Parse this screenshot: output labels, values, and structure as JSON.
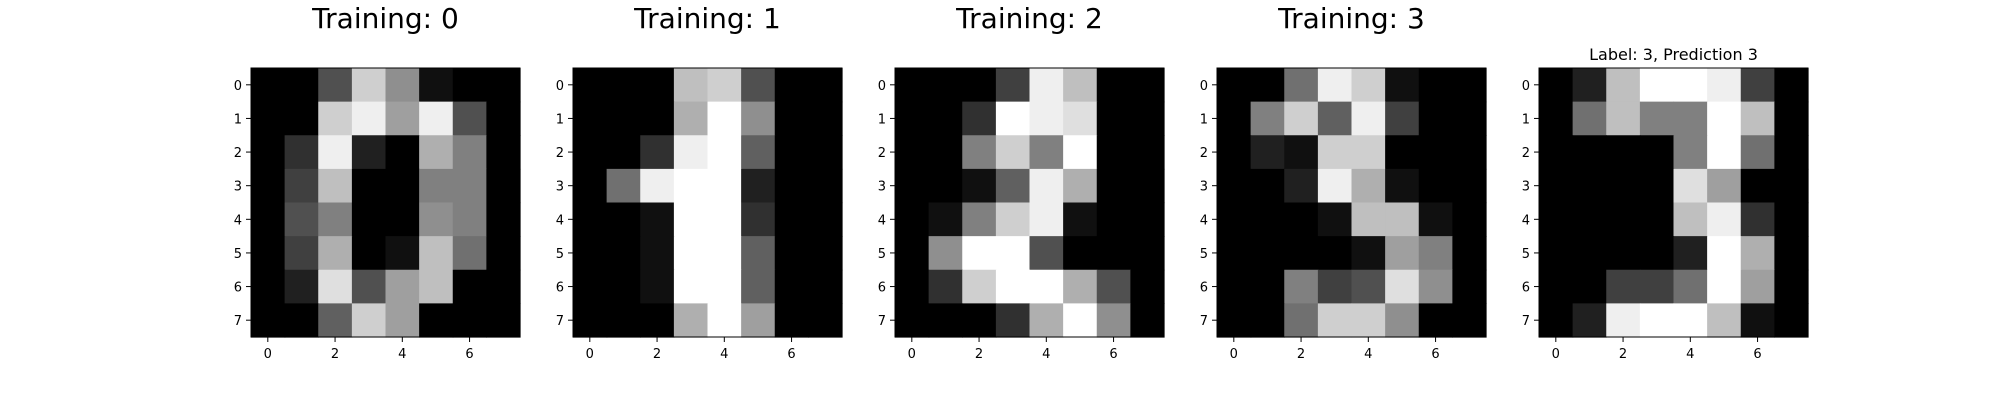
{
  "figure": {
    "background": "#ffffff",
    "frame_color": "#000000"
  },
  "chart_data": [
    {
      "type": "heatmap",
      "title": "Training: 0",
      "title_size": "large",
      "colormap": "gray_r-like (0=black, 16=white)",
      "value_range": [
        0,
        16
      ],
      "x_ticks": [
        0,
        2,
        4,
        6
      ],
      "y_ticks": [
        0,
        1,
        2,
        3,
        4,
        5,
        6,
        7
      ],
      "grid": false,
      "values": [
        [
          0,
          0,
          5,
          13,
          9,
          1,
          0,
          0
        ],
        [
          0,
          0,
          13,
          15,
          10,
          15,
          5,
          0
        ],
        [
          0,
          3,
          15,
          2,
          0,
          11,
          8,
          0
        ],
        [
          0,
          4,
          12,
          0,
          0,
          8,
          8,
          0
        ],
        [
          0,
          5,
          8,
          0,
          0,
          9,
          8,
          0
        ],
        [
          0,
          4,
          11,
          0,
          1,
          12,
          7,
          0
        ],
        [
          0,
          2,
          14,
          5,
          10,
          12,
          0,
          0
        ],
        [
          0,
          0,
          6,
          13,
          10,
          0,
          0,
          0
        ]
      ]
    },
    {
      "type": "heatmap",
      "title": "Training: 1",
      "title_size": "large",
      "colormap": "gray_r-like (0=black, 16=white)",
      "value_range": [
        0,
        16
      ],
      "x_ticks": [
        0,
        2,
        4,
        6
      ],
      "y_ticks": [
        0,
        1,
        2,
        3,
        4,
        5,
        6,
        7
      ],
      "grid": false,
      "values": [
        [
          0,
          0,
          0,
          12,
          13,
          5,
          0,
          0
        ],
        [
          0,
          0,
          0,
          11,
          16,
          9,
          0,
          0
        ],
        [
          0,
          0,
          3,
          15,
          16,
          6,
          0,
          0
        ],
        [
          0,
          7,
          15,
          16,
          16,
          2,
          0,
          0
        ],
        [
          0,
          0,
          1,
          16,
          16,
          3,
          0,
          0
        ],
        [
          0,
          0,
          1,
          16,
          16,
          6,
          0,
          0
        ],
        [
          0,
          0,
          1,
          16,
          16,
          6,
          0,
          0
        ],
        [
          0,
          0,
          0,
          11,
          16,
          10,
          0,
          0
        ]
      ]
    },
    {
      "type": "heatmap",
      "title": "Training: 2",
      "title_size": "large",
      "colormap": "gray_r-like (0=black, 16=white)",
      "value_range": [
        0,
        16
      ],
      "x_ticks": [
        0,
        2,
        4,
        6
      ],
      "y_ticks": [
        0,
        1,
        2,
        3,
        4,
        5,
        6,
        7
      ],
      "grid": false,
      "values": [
        [
          0,
          0,
          0,
          4,
          15,
          12,
          0,
          0
        ],
        [
          0,
          0,
          3,
          16,
          15,
          14,
          0,
          0
        ],
        [
          0,
          0,
          8,
          13,
          8,
          16,
          0,
          0
        ],
        [
          0,
          0,
          1,
          6,
          15,
          11,
          0,
          0
        ],
        [
          0,
          1,
          8,
          13,
          15,
          1,
          0,
          0
        ],
        [
          0,
          9,
          16,
          16,
          5,
          0,
          0,
          0
        ],
        [
          0,
          3,
          13,
          16,
          16,
          11,
          5,
          0
        ],
        [
          0,
          0,
          0,
          3,
          11,
          16,
          9,
          0
        ]
      ]
    },
    {
      "type": "heatmap",
      "title": "Training: 3",
      "title_size": "large",
      "colormap": "gray_r-like (0=black, 16=white)",
      "value_range": [
        0,
        16
      ],
      "x_ticks": [
        0,
        2,
        4,
        6
      ],
      "y_ticks": [
        0,
        1,
        2,
        3,
        4,
        5,
        6,
        7
      ],
      "grid": false,
      "values": [
        [
          0,
          0,
          7,
          15,
          13,
          1,
          0,
          0
        ],
        [
          0,
          8,
          13,
          6,
          15,
          4,
          0,
          0
        ],
        [
          0,
          2,
          1,
          13,
          13,
          0,
          0,
          0
        ],
        [
          0,
          0,
          2,
          15,
          11,
          1,
          0,
          0
        ],
        [
          0,
          0,
          0,
          1,
          12,
          12,
          1,
          0
        ],
        [
          0,
          0,
          0,
          0,
          1,
          10,
          8,
          0
        ],
        [
          0,
          0,
          8,
          4,
          5,
          14,
          9,
          0
        ],
        [
          0,
          0,
          7,
          13,
          13,
          9,
          0,
          0
        ]
      ]
    },
    {
      "type": "heatmap",
      "title": "Label: 3, Prediction 3",
      "title_size": "small",
      "colormap": "gray_r-like (0=black, 16=white)",
      "value_range": [
        0,
        16
      ],
      "x_ticks": [
        0,
        2,
        4,
        6
      ],
      "y_ticks": [
        0,
        1,
        2,
        3,
        4,
        5,
        6,
        7
      ],
      "grid": false,
      "values": [
        [
          0,
          2,
          12,
          16,
          16,
          15,
          4,
          0
        ],
        [
          0,
          7,
          12,
          8,
          8,
          16,
          12,
          0
        ],
        [
          0,
          0,
          0,
          0,
          8,
          16,
          7,
          0
        ],
        [
          0,
          0,
          0,
          0,
          14,
          10,
          0,
          0
        ],
        [
          0,
          0,
          0,
          0,
          12,
          15,
          3,
          0
        ],
        [
          0,
          0,
          0,
          0,
          2,
          16,
          11,
          0
        ],
        [
          0,
          0,
          4,
          4,
          7,
          16,
          10,
          0
        ],
        [
          0,
          2,
          15,
          16,
          16,
          12,
          1,
          0
        ]
      ]
    }
  ]
}
